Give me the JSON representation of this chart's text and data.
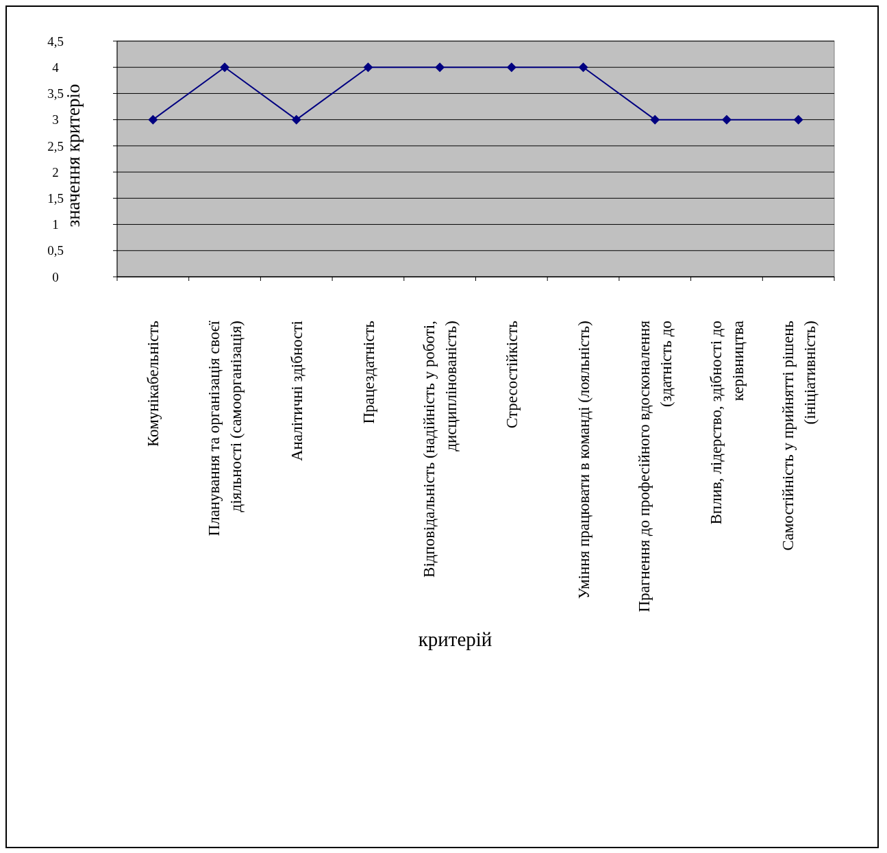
{
  "chart_data": {
    "type": "line",
    "xlabel": "критерій",
    "ylabel": "значення критеріо",
    "categories": [
      "Комунікабельність",
      "Планування та організація своєї діяльності (самоорганізація)",
      "Аналітичні здібності",
      "Працездатність",
      "Відповідальність (надійність у роботі, дисциплінованість)",
      "Стресостійкість",
      "Уміння працювати в команді (лояльність)",
      "Прагнення до професійного вдосконалення (здатність до",
      "Вплив, лідерство, здібності до керівництва",
      "Самостійність у прийнятті рішень (ініціативність)"
    ],
    "series": [
      {
        "color": "#000080",
        "values": [
          3,
          4,
          3,
          4,
          4,
          4,
          4,
          3,
          3,
          3
        ]
      }
    ],
    "ylim": [
      0,
      4.5
    ],
    "yticks": [
      0,
      {
        "value": 0.5,
        "label": "0,5"
      },
      1,
      {
        "value": 1.5,
        "label": "1,5"
      },
      2,
      {
        "value": 2.5,
        "label": "2,5"
      },
      3,
      {
        "value": 3.5,
        "label": "3,5"
      },
      4,
      {
        "value": 4.5,
        "label": "4,5"
      }
    ],
    "grid": "y",
    "marker": "diamond",
    "line_style": "solid"
  }
}
